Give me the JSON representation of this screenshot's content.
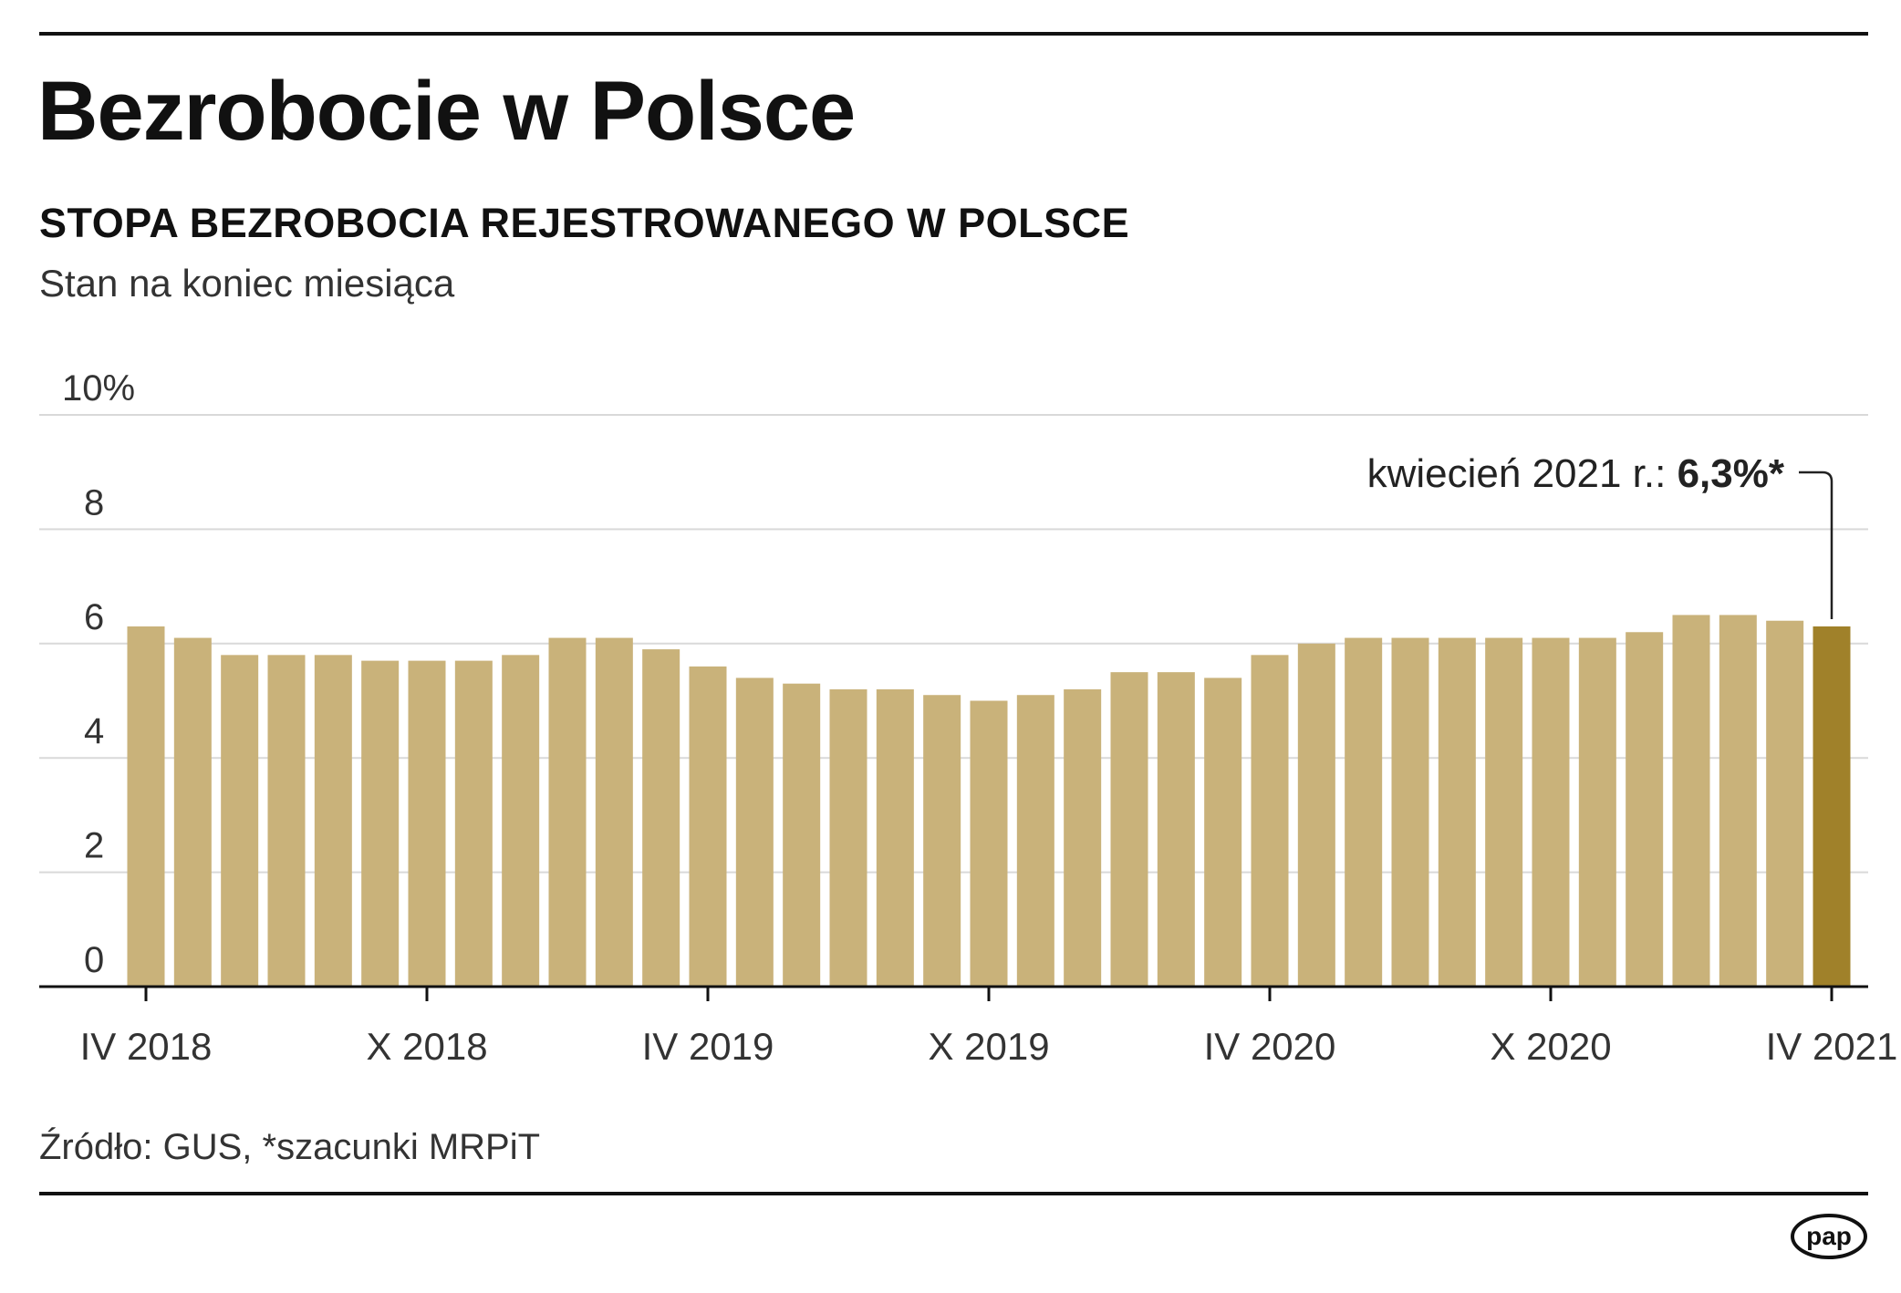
{
  "header": {
    "title": "Bezrobocie w Polsce",
    "subtitle": "STOPA BEZROBOCIA REJESTROWANEGO W POLSCE",
    "note": "Stan na koniec miesiąca"
  },
  "footer": {
    "source": "Źródło: GUS, *szacunki MRPiT",
    "logo_text": "pap"
  },
  "colors": {
    "bar": "#c9b27a",
    "bar_highlight": "#a0812a",
    "grid": "#d9d9d9",
    "axis": "#111111",
    "text": "#333333"
  },
  "chart_data": {
    "type": "bar",
    "title": "STOPA BEZROBOCIA REJESTROWANEGO W POLSCE",
    "ylim": [
      0,
      10
    ],
    "y_ticks": [
      "0",
      "2",
      "4",
      "6",
      "8",
      "10%"
    ],
    "grid": true,
    "x_tick_labels": [
      {
        "index": 0,
        "label": "IV 2018"
      },
      {
        "index": 6,
        "label": "X 2018"
      },
      {
        "index": 12,
        "label": "IV 2019"
      },
      {
        "index": 18,
        "label": "X 2019"
      },
      {
        "index": 24,
        "label": "IV 2020"
      },
      {
        "index": 30,
        "label": "X 2020"
      },
      {
        "index": 36,
        "label": "IV 2021"
      }
    ],
    "categories": [
      "IV 2018",
      "V 2018",
      "VI 2018",
      "VII 2018",
      "VIII 2018",
      "IX 2018",
      "X 2018",
      "XI 2018",
      "XII 2018",
      "I 2019",
      "II 2019",
      "III 2019",
      "IV 2019",
      "V 2019",
      "VI 2019",
      "VII 2019",
      "VIII 2019",
      "IX 2019",
      "X 2019",
      "XI 2019",
      "XII 2019",
      "I 2020",
      "II 2020",
      "III 2020",
      "IV 2020",
      "V 2020",
      "VI 2020",
      "VII 2020",
      "VIII 2020",
      "IX 2020",
      "X 2020",
      "XI 2020",
      "XII 2020",
      "I 2021",
      "II 2021",
      "III 2021",
      "IV 2021"
    ],
    "values": [
      6.3,
      6.1,
      5.8,
      5.8,
      5.8,
      5.7,
      5.7,
      5.7,
      5.8,
      6.1,
      6.1,
      5.9,
      5.6,
      5.4,
      5.3,
      5.2,
      5.2,
      5.1,
      5.0,
      5.1,
      5.2,
      5.5,
      5.5,
      5.4,
      5.8,
      6.0,
      6.1,
      6.1,
      6.1,
      6.1,
      6.1,
      6.1,
      6.2,
      6.5,
      6.5,
      6.4,
      6.3
    ],
    "highlight_index": 36,
    "annotation": {
      "label": "kwiecień 2021 r.: ",
      "value": "6,3%*"
    }
  }
}
